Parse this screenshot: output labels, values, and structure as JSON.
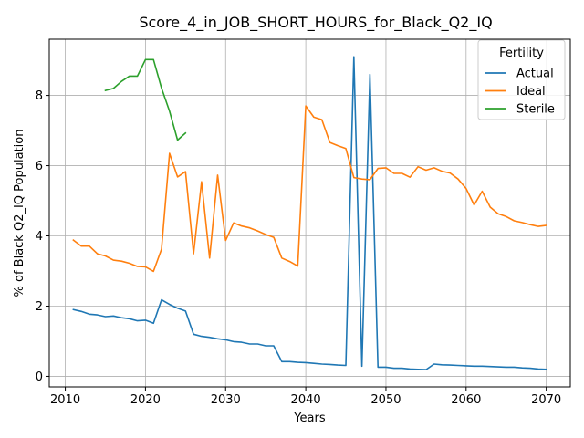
{
  "chart_data": {
    "type": "line",
    "title": "Score_4_in_JOB_SHORT_HOURS_for_Black_Q2_IQ",
    "xlabel": "Years",
    "ylabel": "% of Black Q2_IQ Population",
    "xlim": [
      2008,
      2073
    ],
    "ylim": [
      -0.3,
      9.6
    ],
    "xticks": [
      2010,
      2020,
      2030,
      2040,
      2050,
      2060,
      2070
    ],
    "yticks": [
      0,
      2,
      4,
      6,
      8
    ],
    "grid": true,
    "legend": {
      "title": "Fertility",
      "placement": "top-right"
    },
    "series": [
      {
        "name": "Actual",
        "color": "#1f77b4",
        "x": [
          2011,
          2012,
          2013,
          2014,
          2015,
          2016,
          2017,
          2018,
          2019,
          2020,
          2021,
          2022,
          2023,
          2024,
          2025,
          2026,
          2027,
          2028,
          2029,
          2030,
          2031,
          2032,
          2033,
          2034,
          2035,
          2036,
          2037,
          2038,
          2039,
          2040,
          2041,
          2042,
          2043,
          2044,
          2045,
          2046,
          2047,
          2048,
          2049,
          2050,
          2051,
          2052,
          2053,
          2054,
          2055,
          2056,
          2057,
          2058,
          2059,
          2060,
          2061,
          2062,
          2063,
          2064,
          2065,
          2066,
          2067,
          2068,
          2069,
          2070
        ],
        "values": [
          1.9,
          1.85,
          1.77,
          1.75,
          1.7,
          1.72,
          1.67,
          1.64,
          1.58,
          1.6,
          1.51,
          2.18,
          2.05,
          1.94,
          1.86,
          1.2,
          1.14,
          1.11,
          1.07,
          1.04,
          0.99,
          0.97,
          0.92,
          0.92,
          0.87,
          0.87,
          0.42,
          0.42,
          0.4,
          0.39,
          0.37,
          0.35,
          0.34,
          0.32,
          0.31,
          9.1,
          0.29,
          8.6,
          0.26,
          0.26,
          0.23,
          0.23,
          0.21,
          0.2,
          0.19,
          0.35,
          0.33,
          0.32,
          0.31,
          0.3,
          0.29,
          0.29,
          0.28,
          0.27,
          0.26,
          0.26,
          0.24,
          0.23,
          0.21,
          0.2
        ]
      },
      {
        "name": "Ideal",
        "color": "#ff7f0e",
        "x": [
          2011,
          2012,
          2013,
          2014,
          2015,
          2016,
          2017,
          2018,
          2019,
          2020,
          2021,
          2022,
          2023,
          2024,
          2025,
          2026,
          2027,
          2028,
          2029,
          2030,
          2031,
          2032,
          2033,
          2034,
          2035,
          2036,
          2037,
          2038,
          2039,
          2040,
          2041,
          2042,
          2043,
          2044,
          2045,
          2046,
          2047,
          2048,
          2049,
          2050,
          2051,
          2052,
          2053,
          2054,
          2055,
          2056,
          2057,
          2058,
          2059,
          2060,
          2061,
          2062,
          2063,
          2064,
          2065,
          2066,
          2067,
          2068,
          2069,
          2070
        ],
        "values": [
          3.88,
          3.71,
          3.71,
          3.49,
          3.43,
          3.31,
          3.28,
          3.22,
          3.13,
          3.12,
          2.99,
          3.62,
          6.35,
          5.68,
          5.83,
          3.49,
          5.54,
          3.37,
          5.73,
          3.87,
          4.37,
          4.28,
          4.23,
          4.14,
          4.04,
          3.96,
          3.37,
          3.27,
          3.14,
          7.7,
          7.38,
          7.31,
          6.66,
          6.57,
          6.49,
          5.66,
          5.62,
          5.6,
          5.92,
          5.94,
          5.78,
          5.78,
          5.67,
          5.97,
          5.87,
          5.94,
          5.84,
          5.79,
          5.62,
          5.35,
          4.88,
          5.27,
          4.82,
          4.63,
          4.55,
          4.43,
          4.38,
          4.32,
          4.27,
          4.3
        ]
      },
      {
        "name": "Sterile",
        "color": "#2ca02c",
        "x": [
          2015,
          2016,
          2017,
          2018,
          2019,
          2020,
          2021,
          2022,
          2023,
          2024,
          2025
        ],
        "values": [
          8.14,
          8.2,
          8.4,
          8.55,
          8.55,
          9.02,
          9.02,
          8.21,
          7.55,
          6.73,
          6.93
        ]
      }
    ]
  }
}
